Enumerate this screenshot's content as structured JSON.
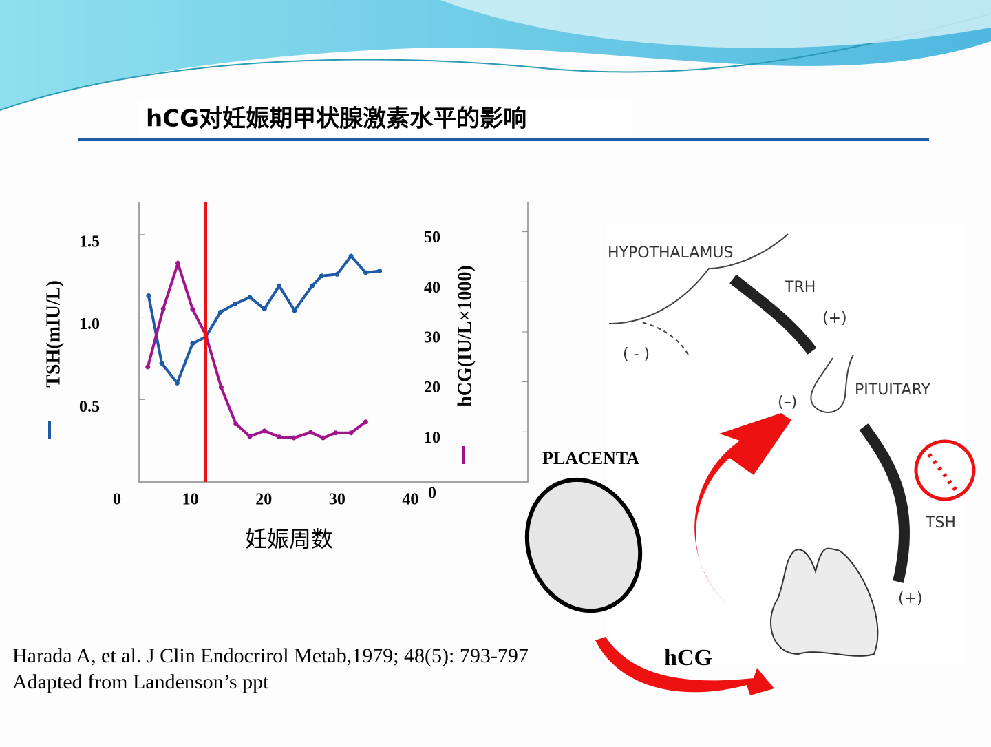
{
  "title": "hCG对妊娠期甲状腺激素水平的影响",
  "chart_data": {
    "type": "line",
    "xlabel": "妊娠周数",
    "ylabel": "TSH(mIU/L)",
    "y2label": "hCG(IU/L×1000)",
    "xlim": [
      3,
      56
    ],
    "xticks": [
      0,
      10,
      20,
      30,
      40
    ],
    "ylim": [
      0,
      1.7
    ],
    "yticks": [
      0.5,
      {
        "value": 1,
        "label": "1.0"
      },
      1.5
    ],
    "y2lim": [
      0,
      56
    ],
    "y2ticks": [
      0,
      10,
      20,
      30,
      40,
      50
    ],
    "vline": {
      "x": 12.1,
      "color": "#ee1111"
    },
    "series": [
      {
        "color": "#1f5aa6",
        "x": [
          4.3,
          6.1,
          8.2,
          10.3,
          12.1,
          14.1,
          16.1,
          18.1,
          20.1,
          22.1,
          24.2,
          26.6,
          27.9,
          30,
          31.9,
          33.9,
          35.8
        ],
        "values": [
          1.13,
          0.72,
          0.6,
          0.84,
          0.88,
          1.03,
          1.08,
          1.12,
          1.05,
          1.19,
          1.04,
          1.19,
          1.25,
          1.26,
          1.37,
          1.27,
          1.28
        ]
      },
      {
        "color": "#a0148c",
        "axis": "y2",
        "x": [
          4.2,
          6.3,
          8.3,
          10.3,
          12.1,
          14.2,
          16.2,
          18.1,
          20.1,
          22.1,
          24.1,
          26.4,
          28.1,
          29.8,
          31.9,
          33.9
        ],
        "values": [
          23,
          34.6,
          43.7,
          34.5,
          29.4,
          18.9,
          11.6,
          9.1,
          10.2,
          9,
          8.8,
          9.9,
          8.8,
          9.8,
          9.8,
          12
        ]
      }
    ]
  },
  "diagram": {
    "hypothalamus": "HYPOTHALAMUS",
    "trh": "TRH",
    "trh_sign": "(+)",
    "feedback_hyp": "( - )",
    "feedback_pit": "(–)",
    "pituitary": "PITUITARY",
    "tsh": "TSH",
    "tsh_sign": "(+)",
    "placenta": "PLACENTA",
    "hcg": "hCG"
  },
  "references": [
    "Harada A, et al.  J Clin Endocrirol Metab,1979; 48(5): 793-797",
    "Adapted from Landenson’s ppt"
  ]
}
